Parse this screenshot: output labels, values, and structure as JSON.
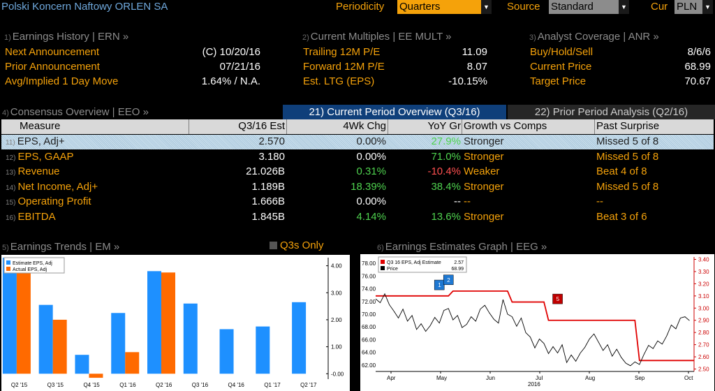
{
  "header": {
    "company": "Polski Koncern Naftowy ORLEN SA",
    "periodicity_label": "Periodicity",
    "periodicity_value": "Quarters",
    "source_label": "Source",
    "source_value": "Standard",
    "cur_label": "Cur",
    "cur_value": "PLN",
    "colors": {
      "periodicity_bg": "#f5a20a",
      "field_bg": "#8c8c8c"
    }
  },
  "earnings_history": {
    "num": "1)",
    "title": "Earnings History | ERN »",
    "rows": [
      {
        "label": "Next Announcement",
        "value": "(C)  10/20/16"
      },
      {
        "label": "Prior Announcement",
        "value": "07/21/16"
      },
      {
        "label": "Avg/Implied 1 Day Move",
        "value": "1.64% / N.A."
      }
    ]
  },
  "current_multiples": {
    "num": "2)",
    "title": "Current Multiples | EE MULT »",
    "rows": [
      {
        "label": "Trailing 12M P/E",
        "value": "11.09"
      },
      {
        "label": "Forward 12M P/E",
        "value": "8.07"
      },
      {
        "label": "Est. LTG (EPS)",
        "value": "-10.15%"
      }
    ]
  },
  "analyst_coverage": {
    "num": "3)",
    "title": "Analyst Coverage | ANR »",
    "rows": [
      {
        "label": "Buy/Hold/Sell",
        "value": "8/6/6"
      },
      {
        "label": "Current Price",
        "value": "68.99"
      },
      {
        "label": "Target Price",
        "value": "70.67"
      }
    ]
  },
  "consensus": {
    "num": "4)",
    "title": "Consensus Overview | EEO »",
    "tab_current": "21) Current Period Overview (Q3/16)",
    "tab_prior": "22) Prior Period Analysis (Q2/16)",
    "columns": [
      "Measure",
      "Q3/16 Est",
      "4Wk Chg",
      "YoY Gr",
      "Growth vs Comps",
      "Past Surprise"
    ],
    "rows": [
      {
        "num": "11)",
        "measure": "EPS, Adj+",
        "est": "2.570",
        "chg": "0.00%",
        "yoy": "27.9%",
        "yoy_color": "green",
        "comps": "Stronger",
        "surprise": "Missed 5 of 8"
      },
      {
        "num": "12)",
        "measure": "EPS, GAAP",
        "est": "3.180",
        "chg": "0.00%",
        "yoy": "71.0%",
        "yoy_color": "green",
        "comps": "Stronger",
        "surprise": "Missed 5 of 8"
      },
      {
        "num": "13)",
        "measure": "Revenue",
        "est": "21.026B",
        "chg": "0.31%",
        "chg_color": "green",
        "yoy": "-10.4%",
        "yoy_color": "red",
        "comps": "Weaker",
        "surprise": "Beat 4 of 8"
      },
      {
        "num": "14)",
        "measure": "Net Income, Adj+",
        "est": "1.189B",
        "chg": "18.39%",
        "chg_color": "green",
        "yoy": "38.4%",
        "yoy_color": "green",
        "comps": "Stronger",
        "surprise": "Missed 5 of 8"
      },
      {
        "num": "15)",
        "measure": "Operating Profit",
        "est": "1.666B",
        "chg": "0.00%",
        "yoy": "--",
        "comps": "--",
        "surprise": "--"
      },
      {
        "num": "16)",
        "measure": "EBITDA",
        "est": "1.845B",
        "chg": "4.14%",
        "chg_color": "green",
        "yoy": "13.6%",
        "yoy_color": "green",
        "comps": "Stronger",
        "surprise": "Beat 3 of 6"
      }
    ]
  },
  "earnings_trends": {
    "num": "5)",
    "title": "Earnings Trends | EM »",
    "toggle_label": "Q3s Only"
  },
  "earnings_graph": {
    "num": "6)",
    "title": "Earnings Estimates Graph | EEG »"
  },
  "chart_data": [
    {
      "type": "bar",
      "categories": [
        "Q2 '15",
        "Q3 '15",
        "Q4 '15",
        "Q1 '16",
        "Q2 '16",
        "Q3 '16",
        "Q4 '16",
        "Q1 '17",
        "Q2 '17"
      ],
      "series": [
        {
          "name": "Estimate EPS, Adj",
          "color": "#1e90ff",
          "values": [
            4.3,
            2.55,
            0.7,
            2.25,
            3.8,
            2.6,
            1.65,
            1.75,
            2.65
          ]
        },
        {
          "name": "Actual EPS, Adj",
          "color": "#ff6a00",
          "values": [
            4.3,
            2.0,
            -0.15,
            0.8,
            3.75,
            null,
            null,
            null,
            null
          ]
        }
      ],
      "yticks": [
        "-0.00",
        "1.00",
        "2.00",
        "3.00",
        "4.00"
      ],
      "ylim": [
        -0.2,
        4.3
      ],
      "legend": "top-left"
    },
    {
      "type": "line",
      "x_ticks": [
        "Apr",
        "May",
        "Jun",
        "Jul",
        "Aug",
        "Sep",
        "Oct"
      ],
      "x_year": "2016",
      "legend": "top-left",
      "series": [
        {
          "name": "Q3 16 EPS, Adj Estimate",
          "last": "2.57",
          "color": "#e00000",
          "axis": "right",
          "points": [
            [
              0,
              3.1
            ],
            [
              16,
              3.1
            ],
            [
              17,
              3.14
            ],
            [
              29,
              3.14
            ],
            [
              30,
              3.05
            ],
            [
              37,
              3.05
            ],
            [
              38,
              2.9
            ],
            [
              57,
              2.9
            ],
            [
              58,
              2.57
            ],
            [
              70,
              2.57
            ]
          ]
        },
        {
          "name": "Price",
          "last": "68.99",
          "color": "#000000",
          "axis": "left",
          "points": [
            [
              0,
              72.4
            ],
            [
              1,
              71.8
            ],
            [
              2,
              73.2
            ],
            [
              3,
              71.5
            ],
            [
              4,
              70.5
            ],
            [
              5,
              69.4
            ],
            [
              6,
              70.8
            ],
            [
              7,
              68.9
            ],
            [
              8,
              69.8
            ],
            [
              9,
              67.6
            ],
            [
              10,
              68.5
            ],
            [
              11,
              67.3
            ],
            [
              12,
              68.2
            ],
            [
              13,
              69.5
            ],
            [
              14,
              68.6
            ],
            [
              15,
              70.6
            ],
            [
              16,
              70.9
            ],
            [
              17,
              69.1
            ],
            [
              18,
              69.8
            ],
            [
              19,
              67.9
            ],
            [
              20,
              68.4
            ],
            [
              21,
              69.6
            ],
            [
              22,
              68.9
            ],
            [
              23,
              70.8
            ],
            [
              24,
              71.4
            ],
            [
              25,
              70.2
            ],
            [
              26,
              69.2
            ],
            [
              27,
              68.6
            ],
            [
              28,
              72.3
            ],
            [
              29,
              70.0
            ],
            [
              30,
              69.6
            ],
            [
              31,
              68.1
            ],
            [
              32,
              69.4
            ],
            [
              33,
              67.1
            ],
            [
              34,
              66.4
            ],
            [
              35,
              64.7
            ],
            [
              36,
              66.1
            ],
            [
              37,
              65.4
            ],
            [
              38,
              63.8
            ],
            [
              39,
              64.9
            ],
            [
              40,
              63.9
            ],
            [
              41,
              65.2
            ],
            [
              42,
              62.4
            ],
            [
              43,
              63.6
            ],
            [
              44,
              62.6
            ],
            [
              45,
              63.9
            ],
            [
              46,
              64.8
            ],
            [
              47,
              66.1
            ],
            [
              48,
              66.9
            ],
            [
              49,
              65.6
            ],
            [
              50,
              64.3
            ],
            [
              51,
              65.2
            ],
            [
              52,
              63.4
            ],
            [
              53,
              64.5
            ],
            [
              54,
              63.2
            ],
            [
              55,
              62.3
            ],
            [
              56,
              61.9
            ],
            [
              57,
              62.5
            ],
            [
              58,
              62.1
            ],
            [
              59,
              63.7
            ],
            [
              60,
              65.1
            ],
            [
              61,
              64.6
            ],
            [
              62,
              65.8
            ],
            [
              63,
              65.3
            ],
            [
              64,
              66.6
            ],
            [
              65,
              68.3
            ],
            [
              66,
              67.7
            ],
            [
              67,
              69.4
            ],
            [
              68,
              69.6
            ],
            [
              69,
              68.99
            ]
          ]
        }
      ],
      "markers": [
        {
          "label": "1",
          "color": "#1e78d2",
          "x": 14,
          "y": 74.6
        },
        {
          "label": "2",
          "color": "#1e78d2",
          "x": 16,
          "y": 75.4
        },
        {
          "label": "5",
          "color": "#c00000",
          "x": 40,
          "y": 72.4
        }
      ],
      "left_axis": {
        "range": [
          61,
          79
        ],
        "ticks": [
          "62.00",
          "64.00",
          "66.00",
          "68.00",
          "70.00",
          "72.00",
          "74.00",
          "76.00",
          "78.00"
        ]
      },
      "right_axis": {
        "range": [
          2.48,
          3.42
        ],
        "ticks": [
          "2.50",
          "2.60",
          "2.70",
          "2.80",
          "2.90",
          "3.00",
          "3.10",
          "3.20",
          "3.30",
          "3.40"
        ]
      }
    }
  ]
}
